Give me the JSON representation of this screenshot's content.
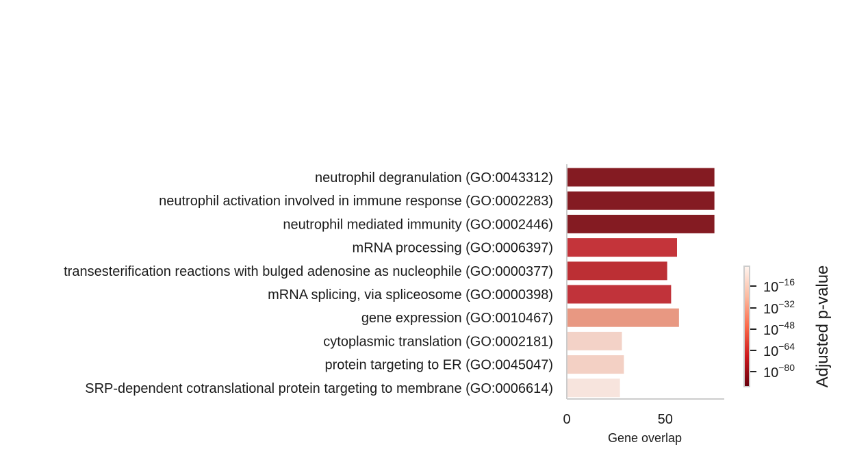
{
  "chart_data": {
    "type": "bar",
    "orientation": "horizontal",
    "categories": [
      "neutrophil degranulation (GO:0043312)",
      "neutrophil activation involved in immune response (GO:0002283)",
      "neutrophil mediated immunity (GO:0002446)",
      "mRNA processing (GO:0006397)",
      "transesterification reactions with bulged adenosine as nucleophile (GO:0000377)",
      "mRNA splicing, via spliceosome (GO:0000398)",
      "gene expression (GO:0010467)",
      "cytoplasmic translation (GO:0002181)",
      "protein targeting to ER (GO:0045047)",
      "SRP-dependent cotranslational protein targeting to membrane (GO:0006614)"
    ],
    "values": [
      75,
      75,
      75,
      56,
      51,
      53,
      57,
      28,
      29,
      27
    ],
    "colors": [
      "#841b22",
      "#841b22",
      "#841b22",
      "#c4343a",
      "#bc2f34",
      "#c1333a",
      "#e89882",
      "#f3d2c7",
      "#f3d0c4",
      "#f7e4dd"
    ],
    "xlabel": "Gene overlap",
    "ylabel": "",
    "xlim": [
      0,
      80
    ],
    "xticks": [
      0,
      50
    ],
    "grid": false,
    "colorbar": {
      "label": "Adjusted p-value",
      "scale": "log",
      "ticks": [
        "10",
        "10",
        "10",
        "10",
        "10"
      ],
      "tick_exponents": [
        "−16",
        "−32",
        "−48",
        "−64",
        "−80"
      ],
      "colormap": [
        "#fff5f0",
        "#fcbba1",
        "#fb6a4a",
        "#cb181d",
        "#67000d"
      ]
    }
  }
}
